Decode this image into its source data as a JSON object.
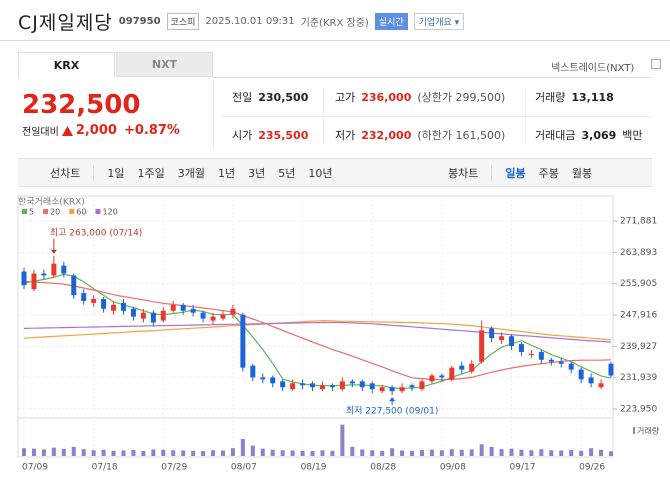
{
  "header": {
    "title": "CJ제일제당",
    "code": "097950",
    "market": "코스피",
    "datetime": "2025.10.01 09:31",
    "basis": "기준(KRX 장중)",
    "realtime": "실시간",
    "company_info": "기업개요"
  },
  "tabs": [
    "KRX",
    "NXT"
  ],
  "nxt_link": "넥스트레이드(NXT)",
  "quote": {
    "price": "232,500",
    "change_label": "전일대비",
    "change": "2,000",
    "change_pct": "+0.87%"
  },
  "stats": [
    {
      "label": "전일",
      "value": "230,500"
    },
    {
      "label": "고가",
      "value": "236,000",
      "extra": "(상한가 299,500)"
    },
    {
      "label": "거래량",
      "value": "13,118"
    },
    {
      "label": "시가",
      "value": "235,500"
    },
    {
      "label": "저가",
      "value": "232,000",
      "extra": "(하한가 161,500)"
    },
    {
      "label": "거래대금",
      "value": "3,069",
      "unit": "백만"
    }
  ],
  "period_buttons": [
    "선차트",
    "1일",
    "1주일",
    "3개월",
    "1년",
    "3년",
    "5년",
    "10년"
  ],
  "chart_types": [
    "봉차트",
    "일봉",
    "주봉",
    "월봉"
  ],
  "chart_data": {
    "type": "candlestick",
    "source": "한국거래소(KRX)",
    "categories": [
      "07/09",
      null,
      null,
      null,
      null,
      null,
      null,
      "07/18",
      null,
      null,
      null,
      null,
      null,
      null,
      "07/29",
      null,
      null,
      null,
      null,
      null,
      null,
      "08/07",
      null,
      null,
      null,
      null,
      null,
      null,
      "08/19",
      null,
      null,
      null,
      null,
      null,
      null,
      "08/28",
      null,
      null,
      null,
      null,
      null,
      null,
      "09/08",
      null,
      null,
      null,
      null,
      null,
      null,
      "09/17",
      null,
      null,
      null,
      null,
      null,
      null,
      "09/26",
      null,
      null,
      null
    ],
    "open": [
      259000,
      254500,
      258500,
      258000,
      260500,
      258000,
      253500,
      251000,
      252000,
      249000,
      251000,
      249500,
      247000,
      248500,
      246500,
      249000,
      250500,
      249500,
      248500,
      246500,
      247000,
      248000,
      248000,
      235000,
      232000,
      232000,
      231000,
      229000,
      230500,
      230500,
      229000,
      230000,
      229000,
      231000,
      231000,
      230500,
      228500,
      229500,
      228500,
      230000,
      229000,
      231000,
      232500,
      231500,
      235000,
      233500,
      236000,
      244500,
      241500,
      242500,
      240500,
      238000,
      238500,
      236500,
      236000,
      235500,
      234000,
      232000,
      229500,
      235500
    ],
    "high": [
      260000,
      259500,
      259500,
      263000,
      261500,
      258500,
      254500,
      253000,
      252500,
      251500,
      252000,
      250000,
      249500,
      249000,
      250000,
      251500,
      251000,
      250500,
      249000,
      248500,
      249000,
      250500,
      248500,
      235500,
      233000,
      232500,
      231500,
      231500,
      231500,
      231000,
      231000,
      230500,
      232000,
      231500,
      231500,
      231000,
      230000,
      230000,
      230500,
      230500,
      231500,
      233000,
      233000,
      235000,
      236000,
      236500,
      246500,
      245000,
      243500,
      243000,
      241000,
      239000,
      239000,
      237000,
      237000,
      236000,
      234500,
      233000,
      231500,
      236000
    ],
    "low": [
      254500,
      254000,
      257000,
      257500,
      257500,
      252000,
      250500,
      250000,
      248500,
      248000,
      248000,
      246500,
      246000,
      245000,
      246000,
      248500,
      248000,
      247500,
      246000,
      245500,
      246500,
      247000,
      233500,
      231000,
      230500,
      229500,
      228500,
      228500,
      229000,
      228500,
      228500,
      228500,
      228500,
      229500,
      228500,
      228000,
      228000,
      227500,
      228000,
      228500,
      228500,
      230500,
      231000,
      231000,
      233000,
      233000,
      235500,
      241000,
      240500,
      239000,
      237500,
      237000,
      235500,
      235000,
      234500,
      233000,
      230500,
      229500,
      229000,
      232000
    ],
    "close": [
      255500,
      258500,
      258000,
      261000,
      258500,
      253000,
      251500,
      252000,
      249500,
      250500,
      249000,
      247500,
      248500,
      246000,
      249000,
      250500,
      249000,
      248500,
      247000,
      247500,
      248000,
      249500,
      234500,
      232000,
      231500,
      230500,
      229500,
      230500,
      230000,
      229500,
      230000,
      229500,
      231000,
      230500,
      229500,
      229000,
      229500,
      228500,
      229500,
      229500,
      231000,
      232500,
      232000,
      234500,
      234000,
      235500,
      244000,
      242000,
      242500,
      240000,
      238500,
      238000,
      236500,
      236000,
      235500,
      234000,
      231500,
      230500,
      230500,
      232500
    ],
    "up_color": "#e8382f",
    "down_color": "#1a64d6",
    "ma_series": [
      {
        "name": "5",
        "color": "#5cb85c",
        "values": [
          256000,
          256500,
          257000,
          257500,
          258300,
          257800,
          256400,
          254600,
          252900,
          251300,
          250500,
          249800,
          249000,
          248200,
          248000,
          248300,
          248600,
          249200,
          248800,
          248100,
          248000,
          248100,
          245300,
          242300,
          239100,
          235600,
          231600,
          230800,
          230400,
          230000,
          229900,
          229900,
          230000,
          230100,
          230100,
          229900,
          229900,
          229300,
          229200,
          229300,
          229600,
          230300,
          231000,
          232000,
          232900,
          233700,
          236000,
          238000,
          239700,
          240500,
          241400,
          240200,
          239100,
          237800,
          236900,
          236000,
          234700,
          233500,
          232400,
          231800
        ]
      },
      {
        "name": "20",
        "color": "#f06b6b",
        "values": [
          256500,
          256300,
          256200,
          256000,
          255800,
          255300,
          254800,
          254300,
          253700,
          253100,
          252600,
          252200,
          251800,
          251300,
          250900,
          250600,
          250300,
          250000,
          249700,
          249400,
          249000,
          248700,
          247800,
          246900,
          246000,
          245000,
          244000,
          243000,
          242000,
          241000,
          240100,
          239100,
          238300,
          237400,
          236500,
          235600,
          234700,
          233700,
          232800,
          231900,
          231700,
          231500,
          231400,
          231500,
          231700,
          232000,
          232700,
          233300,
          233900,
          234400,
          234800,
          235200,
          235500,
          235800,
          236100,
          236300,
          236400,
          236400,
          236400,
          236500
        ]
      },
      {
        "name": "60",
        "color": "#f5a43a",
        "values": [
          242000,
          242150,
          242300,
          242450,
          242600,
          242750,
          242900,
          243050,
          243200,
          243350,
          243500,
          243650,
          243800,
          243950,
          244100,
          244250,
          244400,
          244550,
          244700,
          244850,
          245000,
          245150,
          245300,
          245450,
          245600,
          245750,
          245900,
          246050,
          246200,
          246350,
          246500,
          246400,
          246300,
          246300,
          246200,
          246200,
          246100,
          246100,
          246000,
          246000,
          245900,
          245800,
          245700,
          245600,
          245400,
          245200,
          244900,
          244600,
          244300,
          244000,
          243700,
          243400,
          243100,
          242800,
          242600,
          242400,
          242200,
          242000,
          241800,
          241600
        ]
      },
      {
        "name": "120",
        "color": "#a872d6",
        "values": [
          244500,
          244550,
          244600,
          244650,
          244700,
          244750,
          244800,
          244850,
          244900,
          244950,
          245000,
          245050,
          245100,
          245150,
          245200,
          245250,
          245300,
          245350,
          245400,
          245450,
          245500,
          245550,
          245600,
          245650,
          245700,
          245750,
          245800,
          245850,
          245900,
          245950,
          246000,
          246000,
          246000,
          245900,
          245800,
          245700,
          245500,
          245300,
          245100,
          244900,
          244700,
          244500,
          244300,
          244100,
          243900,
          243700,
          243500,
          243300,
          243100,
          242900,
          242700,
          242500,
          242300,
          242100,
          241900,
          241700,
          241500,
          241300,
          241200,
          241000
        ]
      }
    ],
    "high_label": "최고 263,000 (07/14)",
    "low_label": "최저 227,500 (09/01)",
    "ylim": [
      221655,
      275960
    ],
    "yticks": [
      {
        "value": 271881,
        "label": "271,881"
      },
      {
        "value": 263893,
        "label": "263,893"
      },
      {
        "value": 255905,
        "label": "255,905"
      },
      {
        "value": 247916,
        "label": "247,916"
      },
      {
        "value": 239927,
        "label": "239,927"
      },
      {
        "value": 231939,
        "label": "231,939"
      },
      {
        "value": 223950,
        "label": "223,950"
      }
    ],
    "grid": true,
    "volume_label": "거래량",
    "volume_color": "#8f80c9",
    "volume_ylim": [
      0,
      130000
    ],
    "volume": [
      30000,
      28000,
      25000,
      32000,
      27000,
      35000,
      26000,
      22000,
      24000,
      20000,
      21000,
      23000,
      19000,
      25000,
      24000,
      22000,
      21000,
      20000,
      19000,
      22000,
      21000,
      30000,
      65000,
      40000,
      28000,
      24000,
      22000,
      21000,
      20000,
      19000,
      22000,
      20000,
      120000,
      35000,
      25000,
      22000,
      20000,
      30000,
      21000,
      20000,
      23000,
      24000,
      22000,
      26000,
      24000,
      25000,
      45000,
      35000,
      26000,
      28000,
      24000,
      22000,
      26000,
      22000,
      21000,
      23000,
      20000,
      30000,
      24000,
      18000
    ]
  }
}
